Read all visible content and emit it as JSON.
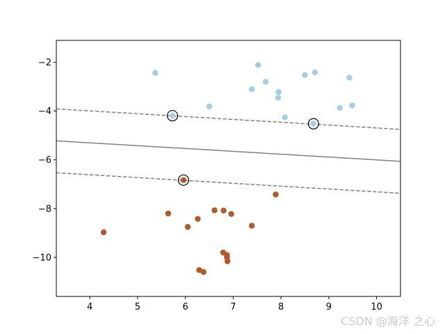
{
  "chart_data": {
    "type": "scatter",
    "xlim": [
      3.3,
      10.5
    ],
    "ylim": [
      -11.6,
      -1.1
    ],
    "xticks": [
      4,
      5,
      6,
      7,
      8,
      9,
      10
    ],
    "yticks": [
      -2,
      -4,
      -6,
      -8,
      -10
    ],
    "xtick_labels": [
      "4",
      "5",
      "6",
      "7",
      "8",
      "9",
      "10"
    ],
    "ytick_labels": [
      "−2",
      "−4",
      "−6",
      "−8",
      "−10"
    ],
    "grid": false,
    "series": [
      {
        "color": "#a6cee3",
        "points": [
          [
            5.37,
            -2.43
          ],
          [
            7.52,
            -2.11
          ],
          [
            7.39,
            -3.1
          ],
          [
            7.68,
            -2.8
          ],
          [
            7.95,
            -3.22
          ],
          [
            7.94,
            -3.45
          ],
          [
            8.08,
            -4.25
          ],
          [
            8.5,
            -2.52
          ],
          [
            8.71,
            -2.41
          ],
          [
            9.43,
            -2.63
          ],
          [
            9.23,
            -3.87
          ],
          [
            9.49,
            -3.77
          ],
          [
            6.5,
            -3.81
          ],
          [
            5.73,
            -4.19
          ],
          [
            8.68,
            -4.52
          ]
        ]
      },
      {
        "color": "#b15928",
        "points": [
          [
            4.29,
            -8.97
          ],
          [
            5.64,
            -8.2
          ],
          [
            6.05,
            -8.75
          ],
          [
            6.26,
            -8.42
          ],
          [
            6.61,
            -8.07
          ],
          [
            6.8,
            -8.08
          ],
          [
            6.96,
            -8.22
          ],
          [
            7.39,
            -8.7
          ],
          [
            7.89,
            -7.42
          ],
          [
            5.96,
            -6.83
          ],
          [
            6.79,
            -9.8
          ],
          [
            6.87,
            -9.9
          ],
          [
            6.87,
            -10.0
          ],
          [
            6.88,
            -10.16
          ],
          [
            6.29,
            -10.52
          ],
          [
            6.38,
            -10.6
          ]
        ]
      }
    ],
    "support_vectors": [
      [
        5.73,
        -4.19
      ],
      [
        8.68,
        -4.52
      ],
      [
        5.96,
        -6.83
      ]
    ],
    "lines": [
      {
        "role": "decision-boundary",
        "style": "solid",
        "color": "#808080",
        "points": [
          [
            3.3,
            -5.22
          ],
          [
            10.5,
            -6.06
          ]
        ]
      },
      {
        "role": "margin-upper",
        "style": "dashed",
        "color": "#808080",
        "points": [
          [
            3.3,
            -3.91
          ],
          [
            10.5,
            -4.75
          ]
        ]
      },
      {
        "role": "margin-lower",
        "style": "dashed",
        "color": "#808080",
        "points": [
          [
            3.3,
            -6.53
          ],
          [
            10.5,
            -7.37
          ]
        ]
      }
    ]
  },
  "watermark": {
    "text": "CSDN @海洋 之心"
  }
}
